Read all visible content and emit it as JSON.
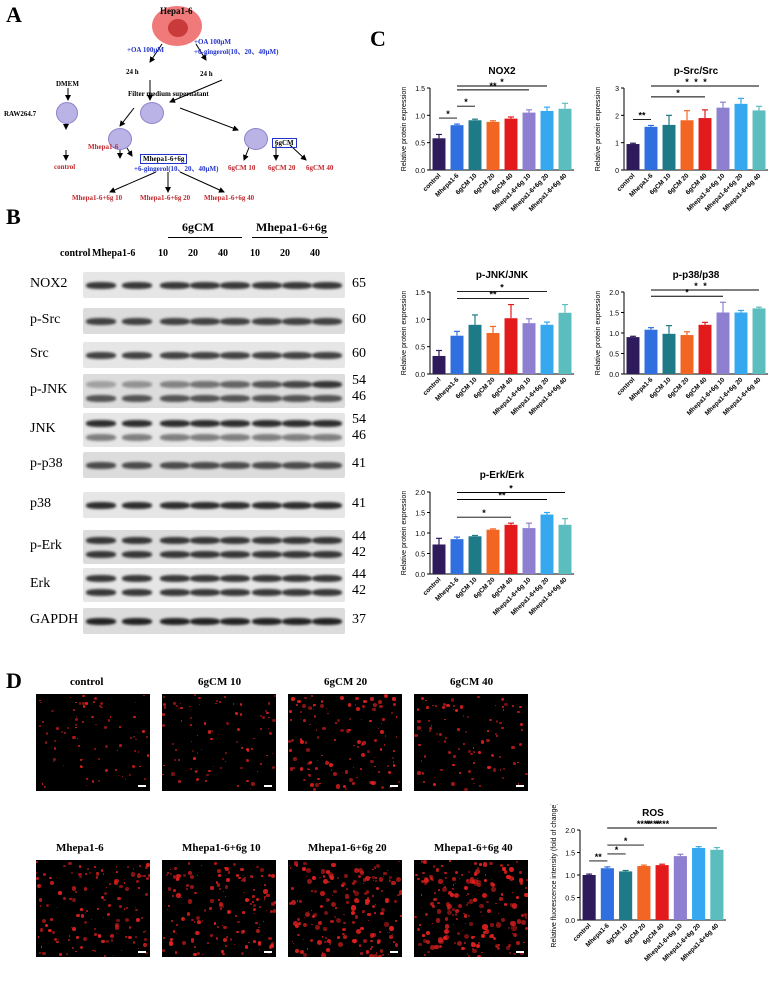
{
  "panel_labels": {
    "a": "A",
    "b": "B",
    "c": "C",
    "d": "D"
  },
  "schematic": {
    "source_cell": "Hepa1-6",
    "oa_left": "+OA 100μM",
    "oa_right_1": "+OA 100μM",
    "oa_right_2": "+6-gingerol(10、20、40μM)",
    "time_left": "24 h",
    "time_right": "24 h",
    "filter": "Filter medium supernatant",
    "dmem": "DMEM",
    "raw": "RAW264.7",
    "control": "control",
    "mhepa": "Mhepa1-6",
    "box_mhepa": "Mhepa1-6+6g",
    "box_mhepa_sub": "+6-gingerol(10、20、40μM)",
    "box_6gcm": "6gCM",
    "cm10": "6gCM 10",
    "cm20": "6gCM 20",
    "cm40": "6gCM 40",
    "mg10": "Mhepa1-6+6g 10",
    "mg20": "Mhepa1-6+6g 20",
    "mg40": "Mhepa1-6+6g 40"
  },
  "blot": {
    "group_6gcm": "6gCM",
    "group_mg": "Mhepa1-6+6g",
    "lanes": [
      "control",
      "Mhepa1-6",
      "10",
      "20",
      "40",
      "10",
      "20",
      "40"
    ],
    "rows": [
      {
        "name": "NOX2",
        "kda": [
          "65"
        ]
      },
      {
        "name": "p-Src",
        "kda": [
          "60"
        ]
      },
      {
        "name": "Src",
        "kda": [
          "60"
        ]
      },
      {
        "name": "p-JNK",
        "kda": [
          "54",
          "46"
        ]
      },
      {
        "name": "JNK",
        "kda": [
          "54",
          "46"
        ]
      },
      {
        "name": "p-p38",
        "kda": [
          "41"
        ]
      },
      {
        "name": "p38",
        "kda": [
          "41"
        ]
      },
      {
        "name": "p-Erk",
        "kda": [
          "44",
          "42"
        ]
      },
      {
        "name": "Erk",
        "kda": [
          "44",
          "42"
        ]
      },
      {
        "name": "GAPDH",
        "kda": [
          "37"
        ]
      }
    ]
  },
  "bar_colors": [
    "#2e1b5c",
    "#2f6fe0",
    "#1e7a86",
    "#f26522",
    "#e31a1c",
    "#8f7fd0",
    "#35a8f0",
    "#5bbdbd"
  ],
  "chart_data": [
    {
      "type": "bar",
      "title": "NOX2",
      "ylabel": "Relative protein expression",
      "categories": [
        "control",
        "Mhepa1-6",
        "6gCM 10",
        "6gCM 20",
        "6gCM 40",
        "Mhepa1-6+6g 10",
        "Mhepa1-6+6g 20",
        "Mhepa1-6+6g 40"
      ],
      "values": [
        0.58,
        0.82,
        0.91,
        0.88,
        0.94,
        1.05,
        1.08,
        1.12
      ],
      "errors": [
        0.07,
        0.02,
        0.02,
        0.02,
        0.03,
        0.05,
        0.07,
        0.1
      ],
      "ylim": [
        0,
        1.5
      ],
      "yticks": [
        "0.0",
        "0.5",
        "1.0",
        "1.5"
      ],
      "sig": [
        {
          "from": 0,
          "to": 1,
          "label": "*"
        },
        {
          "from": 1,
          "to": 2,
          "label": "*"
        },
        {
          "from": 1,
          "to": 5,
          "label": "**"
        },
        {
          "from": 1,
          "to": 6,
          "label": "*"
        }
      ]
    },
    {
      "type": "bar",
      "title": "p-Src/Src",
      "ylabel": "Relative protein expression",
      "categories": [
        "control",
        "Mhepa1-6",
        "6gCM 10",
        "6gCM 20",
        "6gCM 40",
        "Mhepa1-6+6g 10",
        "Mhepa1-6+6g 20",
        "Mhepa1-6+6g 40"
      ],
      "values": [
        0.95,
        1.58,
        1.65,
        1.82,
        1.9,
        2.28,
        2.42,
        2.18
      ],
      "errors": [
        0.03,
        0.05,
        0.35,
        0.35,
        0.3,
        0.2,
        0.2,
        0.15
      ],
      "ylim": [
        0,
        3
      ],
      "yticks": [
        "0",
        "1",
        "2",
        "3"
      ],
      "sig": [
        {
          "from": 0,
          "to": 1,
          "label": "**"
        },
        {
          "from": 1,
          "to": 4,
          "label": "*"
        },
        {
          "from": 1,
          "to": 5,
          "label": "*"
        },
        {
          "from": 1,
          "to": 6,
          "label": "*"
        },
        {
          "from": 1,
          "to": 7,
          "label": "*"
        }
      ]
    },
    {
      "type": "bar",
      "title": "p-JNK/JNK",
      "ylabel": "Relative protein expression",
      "categories": [
        "control",
        "Mhepa1-6",
        "6gCM 10",
        "6gCM 20",
        "6gCM 40",
        "Mhepa1-6+6g 10",
        "Mhepa1-6+6g 20",
        "Mhepa1-6+6g 40"
      ],
      "values": [
        0.33,
        0.7,
        0.9,
        0.75,
        1.02,
        0.93,
        0.9,
        1.12
      ],
      "errors": [
        0.1,
        0.08,
        0.18,
        0.12,
        0.25,
        0.08,
        0.05,
        0.15
      ],
      "ylim": [
        0,
        1.5
      ],
      "yticks": [
        "0.0",
        "0.5",
        "1.0",
        "1.5"
      ],
      "sig": [
        {
          "from": 1,
          "to": 5,
          "label": "**"
        },
        {
          "from": 1,
          "to": 6,
          "label": "*"
        }
      ]
    },
    {
      "type": "bar",
      "title": "p-p38/p38",
      "ylabel": "Relative protein expression",
      "categories": [
        "control",
        "Mhepa1-6",
        "6gCM 10",
        "6gCM 20",
        "6gCM 40",
        "Mhepa1-6+6g 10",
        "Mhepa1-6+6g 20",
        "Mhepa1-6+6g 40"
      ],
      "values": [
        0.9,
        1.08,
        0.98,
        0.95,
        1.2,
        1.5,
        1.5,
        1.6
      ],
      "errors": [
        0.02,
        0.05,
        0.2,
        0.08,
        0.06,
        0.25,
        0.05,
        0.03
      ],
      "ylim": [
        0,
        2.0
      ],
      "yticks": [
        "0.0",
        "0.5",
        "1.0",
        "1.5",
        "2.0"
      ],
      "sig": [
        {
          "from": 1,
          "to": 5,
          "label": "*"
        },
        {
          "from": 1,
          "to": 6,
          "label": "*"
        },
        {
          "from": 1,
          "to": 7,
          "label": "*"
        }
      ]
    },
    {
      "type": "bar",
      "title": "p-Erk/Erk",
      "ylabel": "Relative protein expression",
      "categories": [
        "control",
        "Mhepa1-6",
        "6gCM 10",
        "6gCM 20",
        "6gCM 40",
        "Mhepa1-6+6g 10",
        "Mhepa1-6+6g 20",
        "Mhepa1-6+6g 40"
      ],
      "values": [
        0.72,
        0.85,
        0.92,
        1.08,
        1.2,
        1.12,
        1.45,
        1.2
      ],
      "errors": [
        0.15,
        0.05,
        0.02,
        0.02,
        0.04,
        0.12,
        0.05,
        0.15
      ],
      "ylim": [
        0,
        2.0
      ],
      "yticks": [
        "0.0",
        "0.5",
        "1.0",
        "1.5",
        "2.0"
      ],
      "sig": [
        {
          "from": 1,
          "to": 4,
          "label": "*"
        },
        {
          "from": 1,
          "to": 6,
          "label": "**"
        },
        {
          "from": 1,
          "to": 7,
          "label": "*"
        }
      ]
    },
    {
      "type": "bar",
      "title": "ROS",
      "ylabel": "Relative fluorescence intensity (fold of change)",
      "categories": [
        "control",
        "Mhepa1-6",
        "6gCM 10",
        "6gCM 20",
        "6gCM 40",
        "Mhepa1-6+6g 10",
        "Mhepa1-6+6g 20",
        "Mhepa1-6+6g 40"
      ],
      "values": [
        1.0,
        1.15,
        1.08,
        1.2,
        1.22,
        1.42,
        1.6,
        1.56
      ],
      "errors": [
        0.02,
        0.03,
        0.02,
        0.02,
        0.02,
        0.04,
        0.03,
        0.05
      ],
      "ylim": [
        0,
        2.0
      ],
      "yticks": [
        "0.0",
        "0.5",
        "1.0",
        "1.5",
        "2.0"
      ],
      "sig": [
        {
          "from": 0,
          "to": 1,
          "label": "**"
        },
        {
          "from": 1,
          "to": 2,
          "label": "*"
        },
        {
          "from": 1,
          "to": 3,
          "label": "*"
        },
        {
          "from": 1,
          "to": 5,
          "label": "****"
        },
        {
          "from": 1,
          "to": 6,
          "label": "****"
        },
        {
          "from": 1,
          "to": 7,
          "label": "****"
        }
      ]
    }
  ],
  "micro_labels": [
    "control",
    "6gCM 10",
    "6gCM 20",
    "6gCM 40",
    "Mhepa1-6",
    "Mhepa1-6+6g 10",
    "Mhepa1-6+6g 20",
    "Mhepa1-6+6g 40"
  ],
  "micro_density": [
    0.25,
    0.3,
    0.55,
    0.35,
    0.6,
    0.7,
    0.9,
    1.0
  ]
}
